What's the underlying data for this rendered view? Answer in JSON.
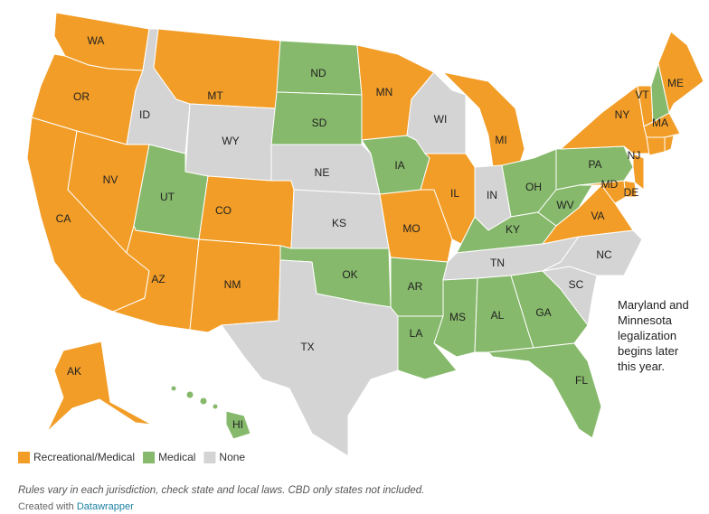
{
  "map": {
    "legend": [
      {
        "label": "Recreational/Medical",
        "color": "#f29d27"
      },
      {
        "label": "Medical",
        "color": "#86b96b"
      },
      {
        "label": "None",
        "color": "#d4d4d4"
      }
    ],
    "states": [
      {
        "label": "WA",
        "status": "Recreational/Medical"
      },
      {
        "label": "OR",
        "status": "Recreational/Medical"
      },
      {
        "label": "CA",
        "status": "Recreational/Medical"
      },
      {
        "label": "NV",
        "status": "Recreational/Medical"
      },
      {
        "label": "ID",
        "status": "None"
      },
      {
        "label": "MT",
        "status": "Recreational/Medical"
      },
      {
        "label": "WY",
        "status": "None"
      },
      {
        "label": "UT",
        "status": "Medical"
      },
      {
        "label": "AZ",
        "status": "Recreational/Medical"
      },
      {
        "label": "CO",
        "status": "Recreational/Medical"
      },
      {
        "label": "NM",
        "status": "Recreational/Medical"
      },
      {
        "label": "ND",
        "status": "Medical"
      },
      {
        "label": "SD",
        "status": "Medical"
      },
      {
        "label": "NE",
        "status": "None"
      },
      {
        "label": "KS",
        "status": "None"
      },
      {
        "label": "OK",
        "status": "Medical"
      },
      {
        "label": "TX",
        "status": "None"
      },
      {
        "label": "MN",
        "status": "Recreational/Medical"
      },
      {
        "label": "IA",
        "status": "Medical"
      },
      {
        "label": "MO",
        "status": "Recreational/Medical"
      },
      {
        "label": "AR",
        "status": "Medical"
      },
      {
        "label": "LA",
        "status": "Medical"
      },
      {
        "label": "WI",
        "status": "None"
      },
      {
        "label": "IL",
        "status": "Recreational/Medical"
      },
      {
        "label": "MI",
        "status": "Recreational/Medical"
      },
      {
        "label": "IN",
        "status": "None"
      },
      {
        "label": "OH",
        "status": "Medical"
      },
      {
        "label": "KY",
        "status": "Medical"
      },
      {
        "label": "TN",
        "status": "None"
      },
      {
        "label": "MS",
        "status": "Medical"
      },
      {
        "label": "AL",
        "status": "Medical"
      },
      {
        "label": "GA",
        "status": "Medical"
      },
      {
        "label": "FL",
        "status": "Medical"
      },
      {
        "label": "SC",
        "status": "None"
      },
      {
        "label": "NC",
        "status": "None"
      },
      {
        "label": "VA",
        "status": "Recreational/Medical"
      },
      {
        "label": "WV",
        "status": "Medical"
      },
      {
        "label": "PA",
        "status": "Medical"
      },
      {
        "label": "NY",
        "status": "Recreational/Medical"
      },
      {
        "label": "VT",
        "status": "Recreational/Medical"
      },
      {
        "status": "Medical"
      },
      {
        "label": "ME",
        "status": "Recreational/Medical"
      },
      {
        "label": "MA",
        "status": "Recreational/Medical"
      },
      {
        "status": "Recreational/Medical"
      },
      {
        "status": "Recreational/Medical"
      },
      {
        "label": "NJ",
        "status": "Recreational/Medical"
      },
      {
        "label": "DE",
        "status": "Recreational/Medical"
      },
      {
        "label": "MD",
        "status": "Recreational/Medical"
      },
      {
        "label": "AK",
        "status": "Recreational/Medical"
      },
      {
        "label": "HI",
        "status": "Medical"
      }
    ],
    "annotation": [
      "Maryland and",
      "Minnesota",
      "legalization",
      "begins later",
      "this year."
    ],
    "note": "Rules vary in each jurisdiction, check state and local laws. CBD only states not included.",
    "credit": "Created with",
    "credit_link": "Datawrapper"
  }
}
